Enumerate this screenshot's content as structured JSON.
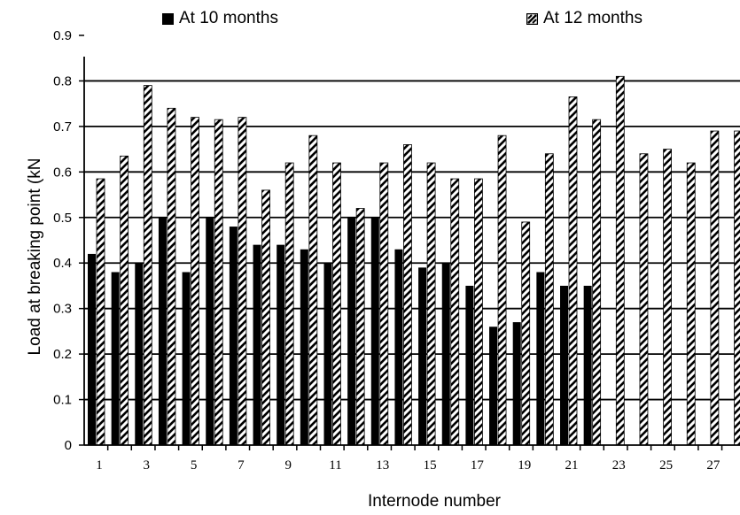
{
  "chart_data": {
    "type": "bar",
    "title": "",
    "xlabel": "Internode number",
    "ylabel": "Load at breaking point (kN",
    "ylim": [
      0,
      0.9
    ],
    "yticks": [
      "0",
      "0.1",
      "0.2",
      "0.3",
      "0.4",
      "0.5",
      "0.6",
      "0.7",
      "0.8",
      "0.9"
    ],
    "categories": [
      "1",
      "2",
      "3",
      "4",
      "5",
      "6",
      "7",
      "8",
      "9",
      "10",
      "11",
      "12",
      "13",
      "14",
      "15",
      "16",
      "17",
      "18",
      "19",
      "20",
      "21",
      "22",
      "23",
      "24",
      "25",
      "26",
      "27",
      "28"
    ],
    "xtick_labels": [
      "1",
      "3",
      "5",
      "7",
      "9",
      "11",
      "13",
      "15",
      "17",
      "19",
      "21",
      "23",
      "25",
      "27"
    ],
    "grid": "horizontal",
    "legend_position": "top",
    "series": [
      {
        "name": "At 10 months",
        "color": "#000000",
        "pattern": "solid",
        "values": [
          0.42,
          0.38,
          0.4,
          0.5,
          0.38,
          0.5,
          0.48,
          0.44,
          0.44,
          0.43,
          0.4,
          0.5,
          0.5,
          0.43,
          0.39,
          0.4,
          0.35,
          0.26,
          0.27,
          0.38,
          0.35,
          0.35,
          null,
          null,
          null,
          null,
          null,
          null
        ]
      },
      {
        "name": "At 12 months",
        "color": "#000000",
        "pattern": "hatched",
        "values": [
          0.585,
          0.635,
          0.79,
          0.74,
          0.72,
          0.715,
          0.72,
          0.56,
          0.62,
          0.68,
          0.62,
          0.52,
          0.62,
          0.66,
          0.62,
          0.585,
          0.585,
          0.68,
          0.49,
          0.64,
          0.765,
          0.715,
          0.81,
          0.64,
          0.65,
          0.62,
          0.69,
          0.69
        ]
      }
    ]
  }
}
